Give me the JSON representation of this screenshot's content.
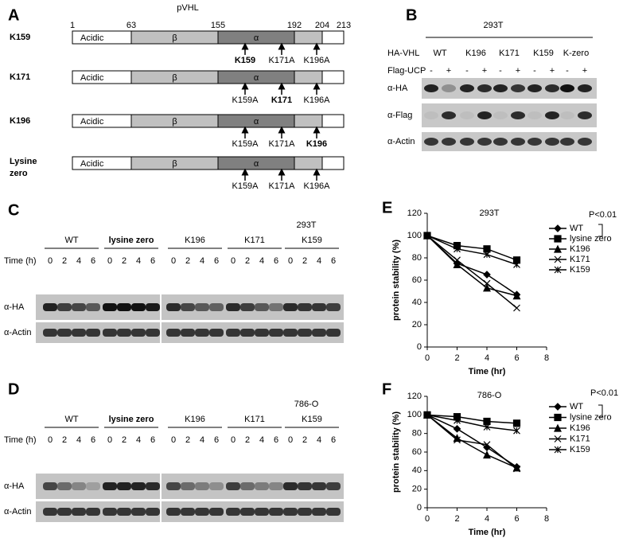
{
  "panels": {
    "a": {
      "label": "A",
      "title": "pVHL",
      "positions": [
        1,
        63,
        155,
        192,
        204,
        213
      ],
      "domains": [
        "Acidic",
        "β",
        "α"
      ],
      "constructs": [
        {
          "name": "K159",
          "sites": [
            {
              "text": "K159",
              "bold": true
            },
            {
              "text": "K171A"
            },
            {
              "text": "K196A"
            }
          ]
        },
        {
          "name": "K171",
          "sites": [
            {
              "text": "K159A"
            },
            {
              "text": "K171",
              "bold": true
            },
            {
              "text": "K196A"
            }
          ]
        },
        {
          "name": "K196",
          "sites": [
            {
              "text": "K159A"
            },
            {
              "text": "K171A"
            },
            {
              "text": "K196",
              "bold": true
            }
          ]
        },
        {
          "name": [
            "Lysine",
            "zero"
          ],
          "sites": [
            {
              "text": "K159A"
            },
            {
              "text": "K171A"
            },
            {
              "text": "K196A"
            }
          ]
        }
      ]
    },
    "b": {
      "label": "B",
      "cell_line": "293T",
      "construct_label": "HA-VHL",
      "constructs": [
        "WT",
        "K196",
        "K171",
        "K159",
        "K-zero"
      ],
      "treatment_label": "Flag-UCP",
      "treatment": [
        "-",
        "+"
      ],
      "blots": [
        "α-HA",
        "α-Flag",
        "α-Actin"
      ]
    },
    "c": {
      "label": "C",
      "cell_line": "293T",
      "groups": [
        {
          "text": "WT"
        },
        {
          "text": "lysine zero",
          "bold": true
        },
        {
          "text": "K196"
        },
        {
          "text": "K171"
        },
        {
          "text": "K159"
        }
      ],
      "time_label": "Time (h)",
      "times": [
        0,
        2,
        4,
        6
      ],
      "blots": [
        "α-HA",
        "α-Actin"
      ]
    },
    "d": {
      "label": "D",
      "cell_line": "786-O",
      "groups": [
        {
          "text": "WT"
        },
        {
          "text": "lysine zero",
          "bold": true
        },
        {
          "text": "K196"
        },
        {
          "text": "K171"
        },
        {
          "text": "K159"
        }
      ],
      "time_label": "Time (h)",
      "times": [
        0,
        2,
        4,
        6
      ],
      "blots": [
        "α-HA",
        "α-Actin"
      ]
    }
  },
  "chart_data": [
    {
      "type": "line",
      "panel_label": "E",
      "title": "293T",
      "xlabel": "Time (hr)",
      "ylabel": "protein stability (%)",
      "x": [
        0,
        2,
        4,
        6
      ],
      "xlim": [
        0,
        8
      ],
      "xticks": [
        0,
        2,
        4,
        6,
        8
      ],
      "ylim": [
        0,
        120
      ],
      "yticks": [
        0,
        20,
        40,
        60,
        80,
        100,
        120
      ],
      "annotation": "P<0.01",
      "series": [
        {
          "name": "WT",
          "color": "#000000",
          "marker": "diamond",
          "values": [
            100,
            75,
            65,
            47
          ]
        },
        {
          "name": "lysine zero",
          "color": "#000000",
          "marker": "square",
          "values": [
            100,
            91,
            88,
            78
          ]
        },
        {
          "name": "K196",
          "color": "#000000",
          "marker": "triangle",
          "values": [
            100,
            74,
            53,
            46
          ]
        },
        {
          "name": "K171",
          "color": "#000000",
          "marker": "x",
          "values": [
            100,
            78,
            57,
            35
          ]
        },
        {
          "name": "K159",
          "color": "#000000",
          "marker": "asterisk",
          "values": [
            100,
            88,
            83,
            74
          ]
        }
      ]
    },
    {
      "type": "line",
      "panel_label": "F",
      "title": "786-O",
      "xlabel": "Time (hr)",
      "ylabel": "protein stability (%)",
      "x": [
        0,
        2,
        4,
        6
      ],
      "xlim": [
        0,
        8
      ],
      "xticks": [
        0,
        2,
        4,
        6,
        8
      ],
      "ylim": [
        0,
        120
      ],
      "yticks": [
        0,
        20,
        40,
        60,
        80,
        100,
        120
      ],
      "annotation": "P<0.01",
      "series": [
        {
          "name": "WT",
          "color": "#000000",
          "marker": "diamond",
          "values": [
            100,
            85,
            65,
            44
          ]
        },
        {
          "name": "lysine zero",
          "color": "#000000",
          "marker": "square",
          "values": [
            100,
            98,
            93,
            91
          ]
        },
        {
          "name": "K196",
          "color": "#000000",
          "marker": "triangle",
          "values": [
            100,
            75,
            57,
            43
          ]
        },
        {
          "name": "K171",
          "color": "#000000",
          "marker": "x",
          "values": [
            100,
            73,
            68,
            42
          ]
        },
        {
          "name": "K159",
          "color": "#000000",
          "marker": "asterisk",
          "values": [
            100,
            94,
            87,
            83
          ]
        }
      ]
    }
  ]
}
